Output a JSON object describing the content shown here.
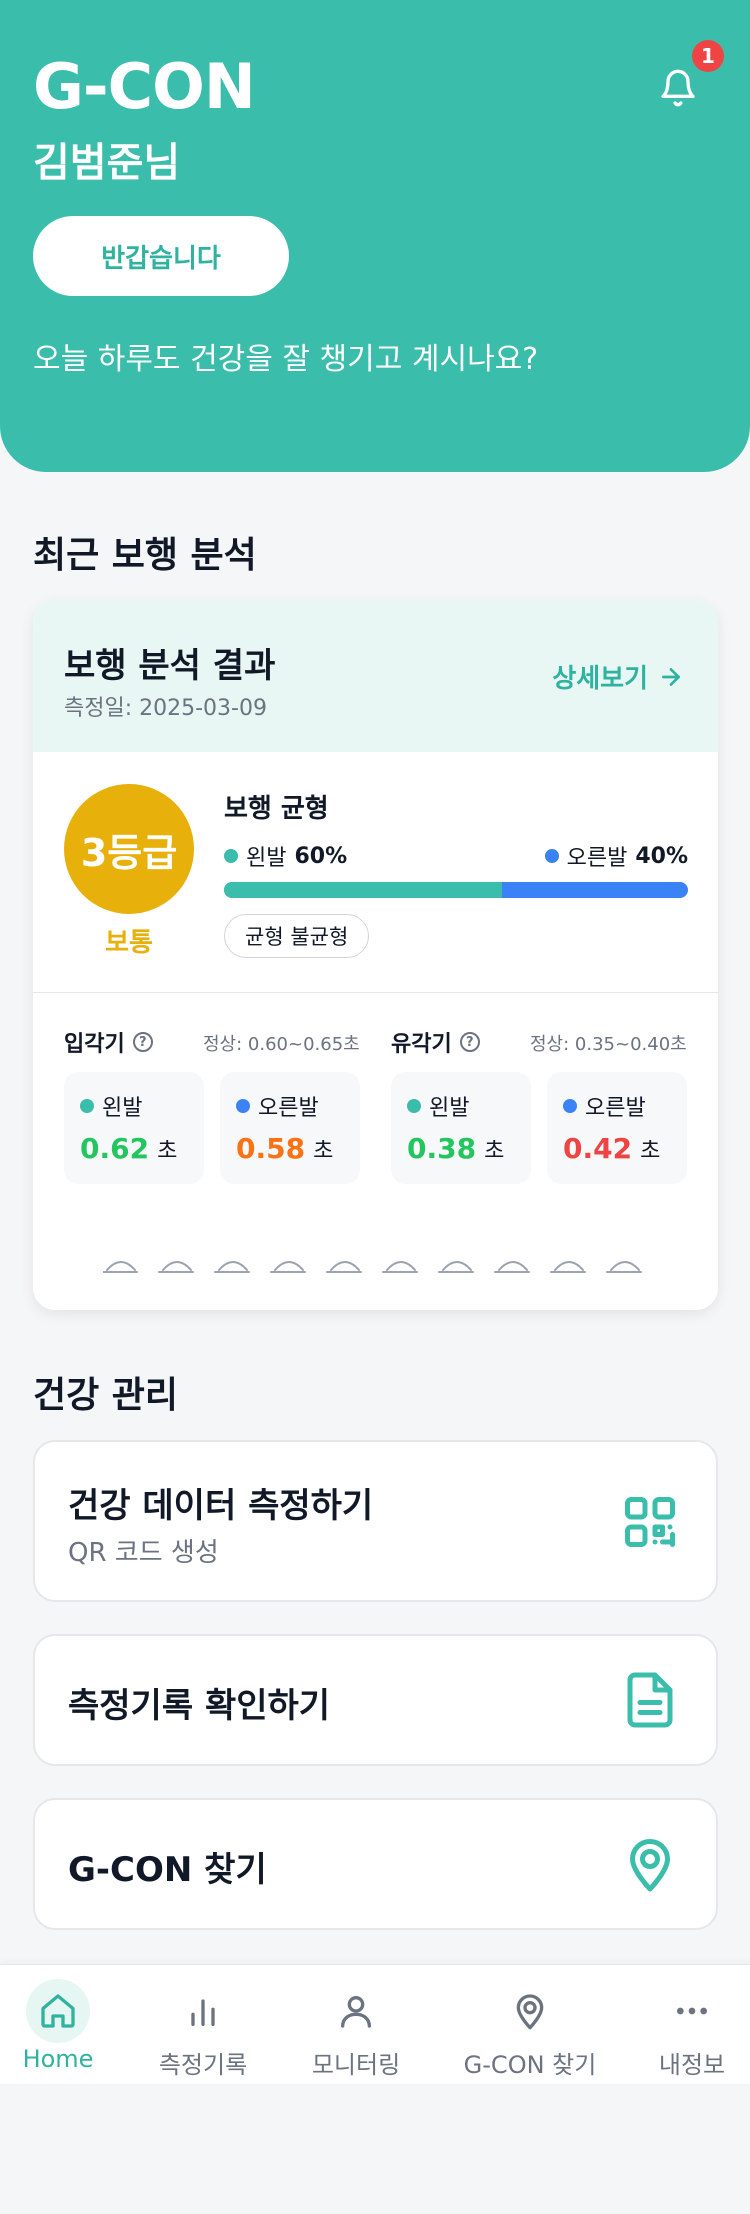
{
  "header": {
    "brand": "G-CON",
    "user_name": "김범준님",
    "greeting_button": "반갑습니다",
    "message": "오늘 하루도 건강을 잘 챙기고 계시나요?",
    "notification_count": "1"
  },
  "recent_gait": {
    "section_title": "최근 보행 분석",
    "card_title": "보행 분석 결과",
    "date": "측정일: 2025-03-09",
    "detail_link": "상세보기",
    "grade": "3등급",
    "grade_label": "보통",
    "balance": {
      "title": "보행 균형",
      "left_label": "왼발",
      "left_pct": "60%",
      "right_label": "오른발",
      "right_pct": "40%",
      "left_fraction": 0.6,
      "status_chip": "균형 불균형"
    },
    "stance": {
      "title": "입각기",
      "normal": "정상: 0.60~0.65초",
      "left_label": "왼발",
      "left_value": "0.62",
      "right_label": "오른발",
      "right_value": "0.58",
      "unit": "초"
    },
    "swing": {
      "title": "유각기",
      "normal": "정상: 0.35~0.40초",
      "left_label": "왼발",
      "left_value": "0.38",
      "right_label": "오른발",
      "right_value": "0.42",
      "unit": "초"
    },
    "colors": {
      "teal": "#3bbdab",
      "blue": "#3b82f6",
      "grade": "#e8b00b",
      "good": "#22c55e",
      "warn": "#f97316",
      "bad": "#ef4444"
    }
  },
  "health": {
    "section_title": "건강 관리",
    "items": [
      {
        "title": "건강 데이터 측정하기",
        "subtitle": "QR 코드 생성",
        "icon": "qr-code-icon"
      },
      {
        "title": "측정기록 확인하기",
        "icon": "document-icon"
      },
      {
        "title": "G-CON 찾기",
        "icon": "map-pin-icon"
      }
    ]
  },
  "nav": {
    "items": [
      {
        "label": "Home",
        "icon": "home-icon",
        "active": true
      },
      {
        "label": "측정기록",
        "icon": "bar-chart-icon"
      },
      {
        "label": "모니터링",
        "icon": "user-icon"
      },
      {
        "label": "G-CON 찾기",
        "icon": "map-pin-icon"
      },
      {
        "label": "내정보",
        "icon": "more-icon"
      }
    ]
  }
}
